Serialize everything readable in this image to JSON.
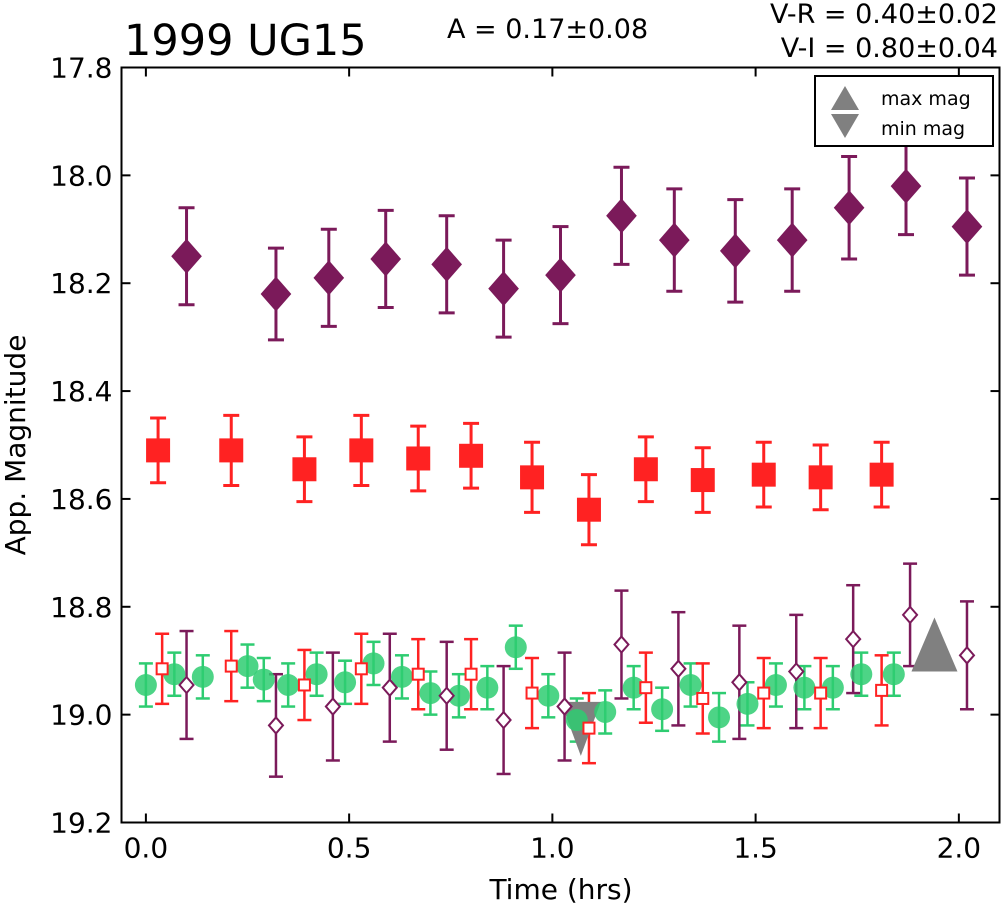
{
  "chart_data": {
    "type": "scatter",
    "title": "1999 UG15",
    "annotations": {
      "amplitude": "A  = 0.17±0.08",
      "color_vr": "V-R = 0.40±0.02",
      "color_vi": "V-I  = 0.80±0.04"
    },
    "xlabel": "Time (hrs)",
    "ylabel": "App. Magnitude",
    "xlim": [
      -0.06,
      2.1
    ],
    "ylim": [
      19.2,
      17.8
    ],
    "y_inverted": true,
    "xticks": [
      "0.0",
      "0.5",
      "1.0",
      "1.5",
      "2.0"
    ],
    "xtick_values": [
      0.0,
      0.5,
      1.0,
      1.5,
      2.0
    ],
    "yticks": [
      "17.8",
      "18.0",
      "18.2",
      "18.4",
      "18.6",
      "18.8",
      "19.0",
      "19.2"
    ],
    "ytick_values": [
      17.8,
      18.0,
      18.2,
      18.4,
      18.6,
      18.8,
      19.0,
      19.2
    ],
    "grid": false,
    "legend": {
      "position": "top-right",
      "entries": [
        {
          "label": "max mag",
          "marker": "triangle-up",
          "color": "#808080"
        },
        {
          "label": "min mag",
          "marker": "triangle-down",
          "color": "#808080"
        }
      ]
    },
    "series": [
      {
        "marker": "diamond",
        "filled": true,
        "color": "#7b1a5a",
        "points": [
          {
            "x": 0.1,
            "y": 18.15,
            "err": 0.09
          },
          {
            "x": 0.32,
            "y": 18.22,
            "err": 0.085
          },
          {
            "x": 0.45,
            "y": 18.19,
            "err": 0.09
          },
          {
            "x": 0.59,
            "y": 18.155,
            "err": 0.09
          },
          {
            "x": 0.74,
            "y": 18.165,
            "err": 0.09
          },
          {
            "x": 0.88,
            "y": 18.21,
            "err": 0.09
          },
          {
            "x": 1.02,
            "y": 18.185,
            "err": 0.09
          },
          {
            "x": 1.17,
            "y": 18.075,
            "err": 0.09
          },
          {
            "x": 1.3,
            "y": 18.12,
            "err": 0.095
          },
          {
            "x": 1.45,
            "y": 18.14,
            "err": 0.095
          },
          {
            "x": 1.59,
            "y": 18.12,
            "err": 0.095
          },
          {
            "x": 1.73,
            "y": 18.06,
            "err": 0.095
          },
          {
            "x": 1.87,
            "y": 18.02,
            "err": 0.09
          },
          {
            "x": 2.02,
            "y": 18.095,
            "err": 0.09
          }
        ]
      },
      {
        "marker": "square",
        "filled": true,
        "color": "#ff2222",
        "points": [
          {
            "x": 0.03,
            "y": 18.51,
            "err": 0.06
          },
          {
            "x": 0.21,
            "y": 18.51,
            "err": 0.065
          },
          {
            "x": 0.39,
            "y": 18.545,
            "err": 0.06
          },
          {
            "x": 0.53,
            "y": 18.51,
            "err": 0.065
          },
          {
            "x": 0.67,
            "y": 18.525,
            "err": 0.06
          },
          {
            "x": 0.8,
            "y": 18.52,
            "err": 0.06
          },
          {
            "x": 0.95,
            "y": 18.56,
            "err": 0.065
          },
          {
            "x": 1.09,
            "y": 18.62,
            "err": 0.065
          },
          {
            "x": 1.23,
            "y": 18.545,
            "err": 0.06
          },
          {
            "x": 1.37,
            "y": 18.565,
            "err": 0.06
          },
          {
            "x": 1.52,
            "y": 18.555,
            "err": 0.06
          },
          {
            "x": 1.66,
            "y": 18.56,
            "err": 0.06
          },
          {
            "x": 1.81,
            "y": 18.555,
            "err": 0.06
          }
        ]
      },
      {
        "marker": "circle",
        "filled": true,
        "color": "#2ecc71",
        "points": [
          {
            "x": 0.0,
            "y": 18.945,
            "err": 0.04
          },
          {
            "x": 0.07,
            "y": 18.925,
            "err": 0.04
          },
          {
            "x": 0.14,
            "y": 18.93,
            "err": 0.04
          },
          {
            "x": 0.25,
            "y": 18.91,
            "err": 0.04
          },
          {
            "x": 0.29,
            "y": 18.935,
            "err": 0.04
          },
          {
            "x": 0.35,
            "y": 18.945,
            "err": 0.04
          },
          {
            "x": 0.42,
            "y": 18.925,
            "err": 0.04
          },
          {
            "x": 0.49,
            "y": 18.94,
            "err": 0.04
          },
          {
            "x": 0.56,
            "y": 18.905,
            "err": 0.04
          },
          {
            "x": 0.63,
            "y": 18.93,
            "err": 0.04
          },
          {
            "x": 0.7,
            "y": 18.96,
            "err": 0.04
          },
          {
            "x": 0.77,
            "y": 18.965,
            "err": 0.04
          },
          {
            "x": 0.84,
            "y": 18.95,
            "err": 0.04
          },
          {
            "x": 0.91,
            "y": 18.875,
            "err": 0.04
          },
          {
            "x": 0.99,
            "y": 18.965,
            "err": 0.04
          },
          {
            "x": 1.06,
            "y": 19.01,
            "err": 0.04
          },
          {
            "x": 1.13,
            "y": 18.995,
            "err": 0.04
          },
          {
            "x": 1.2,
            "y": 18.95,
            "err": 0.04
          },
          {
            "x": 1.27,
            "y": 18.99,
            "err": 0.04
          },
          {
            "x": 1.34,
            "y": 18.945,
            "err": 0.04
          },
          {
            "x": 1.41,
            "y": 19.005,
            "err": 0.045
          },
          {
            "x": 1.48,
            "y": 18.98,
            "err": 0.04
          },
          {
            "x": 1.55,
            "y": 18.945,
            "err": 0.04
          },
          {
            "x": 1.62,
            "y": 18.95,
            "err": 0.04
          },
          {
            "x": 1.69,
            "y": 18.95,
            "err": 0.04
          },
          {
            "x": 1.76,
            "y": 18.925,
            "err": 0.04
          },
          {
            "x": 1.84,
            "y": 18.925,
            "err": 0.04
          }
        ]
      },
      {
        "marker": "square",
        "filled": false,
        "color": "#ff2222",
        "points": [
          {
            "x": 0.04,
            "y": 18.915,
            "err": 0.065
          },
          {
            "x": 0.21,
            "y": 18.91,
            "err": 0.065
          },
          {
            "x": 0.39,
            "y": 18.945,
            "err": 0.065
          },
          {
            "x": 0.53,
            "y": 18.915,
            "err": 0.065
          },
          {
            "x": 0.67,
            "y": 18.925,
            "err": 0.065
          },
          {
            "x": 0.8,
            "y": 18.925,
            "err": 0.065
          },
          {
            "x": 0.95,
            "y": 18.96,
            "err": 0.065
          },
          {
            "x": 1.09,
            "y": 19.025,
            "err": 0.065
          },
          {
            "x": 1.23,
            "y": 18.95,
            "err": 0.065
          },
          {
            "x": 1.37,
            "y": 18.97,
            "err": 0.065
          },
          {
            "x": 1.52,
            "y": 18.96,
            "err": 0.065
          },
          {
            "x": 1.66,
            "y": 18.96,
            "err": 0.065
          },
          {
            "x": 1.81,
            "y": 18.955,
            "err": 0.065
          }
        ]
      },
      {
        "marker": "diamond",
        "filled": false,
        "color": "#7b1a5a",
        "points": [
          {
            "x": 0.1,
            "y": 18.945,
            "err": 0.1
          },
          {
            "x": 0.32,
            "y": 19.02,
            "err": 0.095
          },
          {
            "x": 0.46,
            "y": 18.985,
            "err": 0.1
          },
          {
            "x": 0.6,
            "y": 18.95,
            "err": 0.1
          },
          {
            "x": 0.74,
            "y": 18.965,
            "err": 0.1
          },
          {
            "x": 0.88,
            "y": 19.01,
            "err": 0.1
          },
          {
            "x": 1.03,
            "y": 18.985,
            "err": 0.1
          },
          {
            "x": 1.17,
            "y": 18.87,
            "err": 0.1
          },
          {
            "x": 1.31,
            "y": 18.915,
            "err": 0.105
          },
          {
            "x": 1.46,
            "y": 18.94,
            "err": 0.105
          },
          {
            "x": 1.6,
            "y": 18.92,
            "err": 0.105
          },
          {
            "x": 1.74,
            "y": 18.86,
            "err": 0.1
          },
          {
            "x": 1.88,
            "y": 18.815,
            "err": 0.095
          },
          {
            "x": 2.02,
            "y": 18.89,
            "err": 0.1
          }
        ]
      }
    ],
    "extrema": [
      {
        "label": "max mag",
        "marker": "triangle-up",
        "x": 1.94,
        "y": 18.87,
        "color": "#808080"
      },
      {
        "label": "min mag",
        "marker": "triangle-down",
        "x": 1.07,
        "y": 19.03,
        "color": "#808080"
      }
    ]
  }
}
